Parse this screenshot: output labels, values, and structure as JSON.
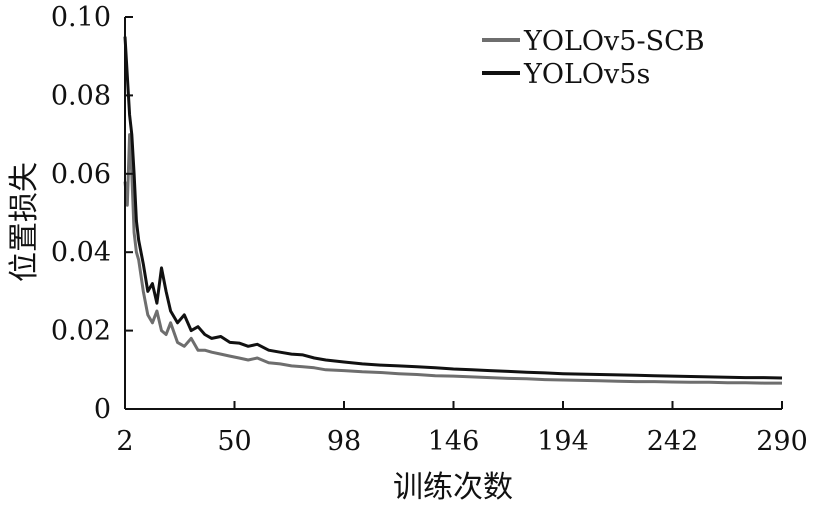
{
  "chart_data": {
    "type": "line",
    "xlabel": "训练次数",
    "ylabel": "位置损失",
    "xlim": [
      2,
      290
    ],
    "ylim": [
      0,
      0.1
    ],
    "x_ticks": [
      2,
      50,
      98,
      146,
      194,
      242,
      290
    ],
    "x_tick_labels": [
      "2",
      "50",
      "98",
      "146",
      "194",
      "242",
      "290"
    ],
    "y_ticks": [
      0,
      0.02,
      0.04,
      0.06,
      0.08,
      0.1
    ],
    "y_tick_labels": [
      "0",
      "0.02",
      "0.04",
      "0.06",
      "0.08",
      "0.10"
    ],
    "grid": false,
    "legend_position": "top-right",
    "series": [
      {
        "name": "YOLOv5-SCB",
        "color": "#6e6e6e",
        "x": [
          2,
          3,
          4,
          5,
          6,
          7,
          8,
          9,
          10,
          12,
          14,
          16,
          18,
          20,
          22,
          25,
          28,
          31,
          34,
          37,
          40,
          44,
          48,
          52,
          56,
          60,
          65,
          70,
          75,
          80,
          85,
          90,
          98,
          106,
          114,
          122,
          130,
          138,
          146,
          154,
          162,
          170,
          178,
          186,
          194,
          202,
          210,
          218,
          226,
          234,
          242,
          250,
          258,
          266,
          274,
          282,
          290
        ],
        "y": [
          0.058,
          0.052,
          0.07,
          0.06,
          0.045,
          0.04,
          0.038,
          0.034,
          0.03,
          0.024,
          0.022,
          0.025,
          0.02,
          0.019,
          0.022,
          0.017,
          0.016,
          0.018,
          0.015,
          0.015,
          0.0145,
          0.014,
          0.0135,
          0.013,
          0.0125,
          0.013,
          0.0118,
          0.0115,
          0.011,
          0.0108,
          0.0105,
          0.01,
          0.0098,
          0.0095,
          0.0093,
          0.009,
          0.0088,
          0.0085,
          0.0084,
          0.0082,
          0.008,
          0.0078,
          0.0077,
          0.0075,
          0.0074,
          0.0073,
          0.0072,
          0.0071,
          0.007,
          0.007,
          0.0069,
          0.0068,
          0.0068,
          0.0067,
          0.0067,
          0.0066,
          0.0066
        ]
      },
      {
        "name": "YOLOv5s",
        "color": "#111111",
        "x": [
          2,
          3,
          4,
          5,
          6,
          7,
          8,
          9,
          10,
          12,
          14,
          16,
          18,
          20,
          22,
          25,
          28,
          31,
          34,
          37,
          40,
          44,
          48,
          52,
          56,
          60,
          65,
          70,
          75,
          80,
          85,
          90,
          98,
          106,
          114,
          122,
          130,
          138,
          146,
          154,
          162,
          170,
          178,
          186,
          194,
          202,
          210,
          218,
          226,
          234,
          242,
          250,
          258,
          266,
          274,
          282,
          290
        ],
        "y": [
          0.095,
          0.085,
          0.075,
          0.07,
          0.06,
          0.048,
          0.043,
          0.04,
          0.037,
          0.03,
          0.032,
          0.027,
          0.036,
          0.03,
          0.025,
          0.022,
          0.024,
          0.02,
          0.021,
          0.019,
          0.018,
          0.0185,
          0.017,
          0.0168,
          0.016,
          0.0165,
          0.015,
          0.0145,
          0.014,
          0.0138,
          0.013,
          0.0125,
          0.012,
          0.0115,
          0.0112,
          0.011,
          0.0108,
          0.0105,
          0.0102,
          0.01,
          0.0098,
          0.0096,
          0.0094,
          0.0092,
          0.009,
          0.0089,
          0.0088,
          0.0087,
          0.0086,
          0.0085,
          0.0084,
          0.0083,
          0.0082,
          0.0081,
          0.008,
          0.008,
          0.0079
        ]
      }
    ]
  }
}
